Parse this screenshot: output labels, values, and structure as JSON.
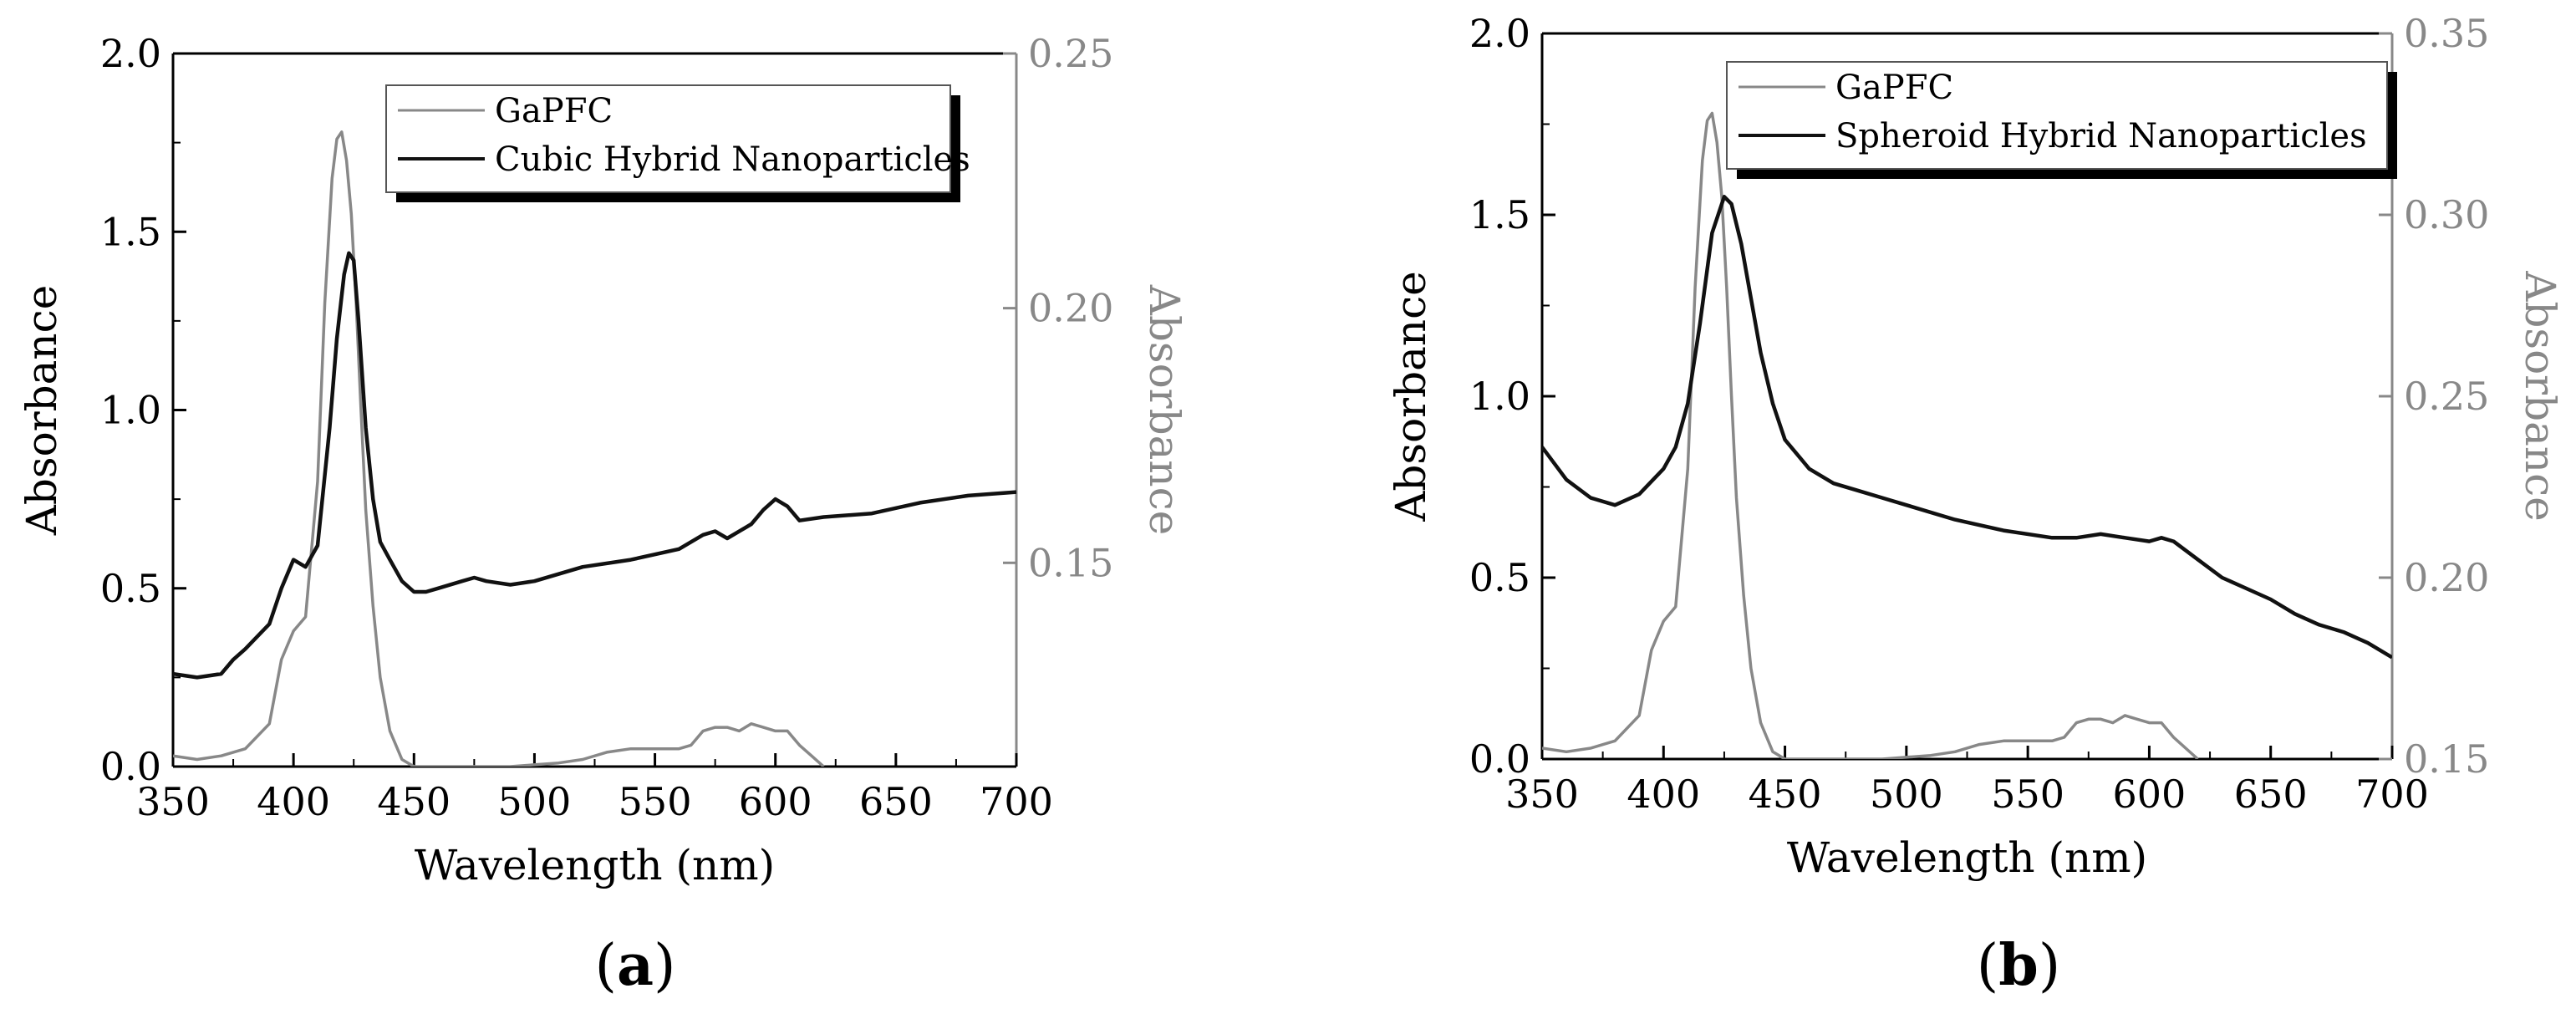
{
  "figure": {
    "panels": [
      {
        "label_open": "(",
        "label": "a",
        "label_close": ")"
      },
      {
        "label_open": "(",
        "label": "b",
        "label_close": ")"
      }
    ]
  },
  "colors": {
    "gapfc": "#888888",
    "hybrid": "#111111",
    "axis": "#000000",
    "right_axis": "#888888"
  },
  "chart_data": [
    {
      "type": "line",
      "panel_label": "a",
      "xlabel": "Wavelength (nm)",
      "ylabel_left": "Absorbance",
      "ylabel_right": "Absorbance",
      "xlim": [
        350,
        700
      ],
      "ylim_left": [
        0.0,
        2.0
      ],
      "ylim_right": [
        0.11,
        0.25
      ],
      "x_ticks": [
        350,
        400,
        450,
        500,
        550,
        600,
        650,
        700
      ],
      "y_ticks_left": [
        "0.0",
        "0.5",
        "1.0",
        "1.5",
        "2.0"
      ],
      "y_ticks_right": [
        "0.15",
        "0.20",
        "0.25"
      ],
      "legend": [
        "GaPFC",
        "Cubic Hybrid Nanoparticles"
      ],
      "legend_position": "top-right",
      "series": [
        {
          "name": "GaPFC",
          "axis": "left",
          "x": [
            350,
            360,
            370,
            380,
            390,
            395,
            400,
            405,
            410,
            413,
            416,
            418,
            420,
            422,
            424,
            426,
            428,
            430,
            433,
            436,
            440,
            445,
            450,
            470,
            490,
            510,
            520,
            530,
            540,
            550,
            560,
            565,
            570,
            575,
            580,
            585,
            590,
            595,
            600,
            605,
            610,
            615,
            620
          ],
          "y": [
            0.03,
            0.02,
            0.03,
            0.05,
            0.12,
            0.3,
            0.38,
            0.42,
            0.8,
            1.3,
            1.65,
            1.76,
            1.78,
            1.7,
            1.55,
            1.3,
            1.0,
            0.72,
            0.45,
            0.25,
            0.1,
            0.02,
            0.0,
            0.0,
            0.0,
            0.01,
            0.02,
            0.04,
            0.05,
            0.05,
            0.05,
            0.06,
            0.1,
            0.11,
            0.11,
            0.1,
            0.12,
            0.11,
            0.1,
            0.1,
            0.06,
            0.03,
            0.0
          ]
        },
        {
          "name": "Cubic Hybrid Nanoparticles",
          "axis": "left",
          "x": [
            350,
            360,
            370,
            375,
            380,
            390,
            395,
            400,
            405,
            410,
            415,
            418,
            421,
            423,
            425,
            427,
            430,
            433,
            436,
            440,
            445,
            450,
            455,
            460,
            470,
            475,
            480,
            490,
            500,
            520,
            540,
            560,
            570,
            575,
            580,
            590,
            595,
            600,
            605,
            610,
            620,
            640,
            660,
            680,
            700
          ],
          "y": [
            0.26,
            0.25,
            0.26,
            0.3,
            0.33,
            0.4,
            0.5,
            0.58,
            0.56,
            0.62,
            0.95,
            1.2,
            1.38,
            1.44,
            1.42,
            1.25,
            0.95,
            0.75,
            0.63,
            0.58,
            0.52,
            0.49,
            0.49,
            0.5,
            0.52,
            0.53,
            0.52,
            0.51,
            0.52,
            0.56,
            0.58,
            0.61,
            0.65,
            0.66,
            0.64,
            0.68,
            0.72,
            0.75,
            0.73,
            0.69,
            0.7,
            0.71,
            0.74,
            0.76,
            0.77
          ]
        }
      ]
    },
    {
      "type": "line",
      "panel_label": "b",
      "xlabel": "Wavelength (nm)",
      "ylabel_left": "Absorbance",
      "ylabel_right": "Absorbance",
      "xlim": [
        350,
        700
      ],
      "ylim_left": [
        0.0,
        2.0
      ],
      "ylim_right": [
        0.15,
        0.35
      ],
      "x_ticks": [
        350,
        400,
        450,
        500,
        550,
        600,
        650,
        700
      ],
      "y_ticks_left": [
        "0.0",
        "0.5",
        "1.0",
        "1.5",
        "2.0"
      ],
      "y_ticks_right": [
        "0.15",
        "0.20",
        "0.25",
        "0.30",
        "0.35"
      ],
      "legend": [
        "GaPFC",
        "Spheroid Hybrid Nanoparticles"
      ],
      "legend_position": "top-right",
      "series": [
        {
          "name": "GaPFC",
          "axis": "left",
          "x": [
            350,
            360,
            370,
            380,
            390,
            395,
            400,
            405,
            410,
            413,
            416,
            418,
            420,
            422,
            424,
            426,
            428,
            430,
            433,
            436,
            440,
            445,
            450,
            470,
            490,
            510,
            520,
            530,
            540,
            550,
            560,
            565,
            570,
            575,
            580,
            585,
            590,
            595,
            600,
            605,
            610,
            615,
            620
          ],
          "y": [
            0.03,
            0.02,
            0.03,
            0.05,
            0.12,
            0.3,
            0.38,
            0.42,
            0.8,
            1.3,
            1.65,
            1.76,
            1.78,
            1.7,
            1.55,
            1.3,
            1.0,
            0.72,
            0.45,
            0.25,
            0.1,
            0.02,
            0.0,
            0.0,
            0.0,
            0.01,
            0.02,
            0.04,
            0.05,
            0.05,
            0.05,
            0.06,
            0.1,
            0.11,
            0.11,
            0.1,
            0.12,
            0.11,
            0.1,
            0.1,
            0.06,
            0.03,
            0.0
          ]
        },
        {
          "name": "Spheroid Hybrid Nanoparticles",
          "axis": "left",
          "x": [
            350,
            360,
            370,
            380,
            390,
            400,
            405,
            410,
            415,
            420,
            425,
            428,
            432,
            436,
            440,
            445,
            450,
            460,
            470,
            480,
            490,
            500,
            520,
            540,
            560,
            570,
            580,
            590,
            600,
            605,
            610,
            620,
            630,
            640,
            650,
            660,
            670,
            680,
            690,
            700
          ],
          "y": [
            0.86,
            0.77,
            0.72,
            0.7,
            0.73,
            0.8,
            0.86,
            0.98,
            1.2,
            1.45,
            1.55,
            1.53,
            1.42,
            1.27,
            1.12,
            0.98,
            0.88,
            0.8,
            0.76,
            0.74,
            0.72,
            0.7,
            0.66,
            0.63,
            0.61,
            0.61,
            0.62,
            0.61,
            0.6,
            0.61,
            0.6,
            0.55,
            0.5,
            0.47,
            0.44,
            0.4,
            0.37,
            0.35,
            0.32,
            0.28
          ]
        }
      ]
    }
  ]
}
